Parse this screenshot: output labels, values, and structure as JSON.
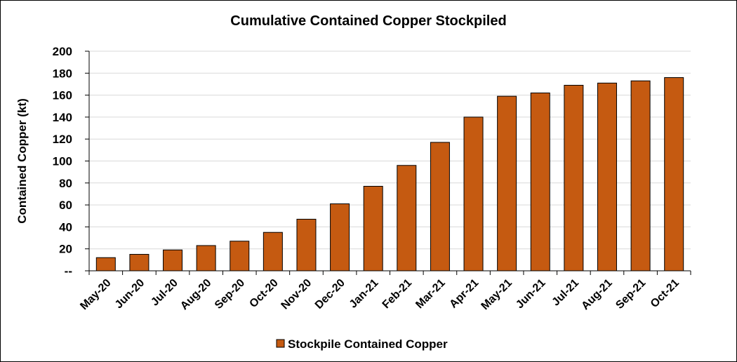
{
  "chart_data": {
    "type": "bar",
    "title": "Cumulative Contained Copper Stockpiled",
    "xlabel": "",
    "ylabel": "Contained Copper (kt)",
    "ylim": [
      0,
      200
    ],
    "yticks": [
      0,
      20,
      40,
      60,
      80,
      100,
      120,
      140,
      160,
      180,
      200
    ],
    "ytick_labels": [
      "--",
      "20",
      "40",
      "60",
      "80",
      "100",
      "120",
      "140",
      "160",
      "180",
      "200"
    ],
    "grid": true,
    "legend_position": "bottom",
    "categories": [
      "May-20",
      "Jun-20",
      "Jul-20",
      "Aug-20",
      "Sep-20",
      "Oct-20",
      "Nov-20",
      "Dec-20",
      "Jan-21",
      "Feb-21",
      "Mar-21",
      "Apr-21",
      "May-21",
      "Jun-21",
      "Jul-21",
      "Aug-21",
      "Sep-21",
      "Oct-21"
    ],
    "series": [
      {
        "name": "Stockpile Contained Copper",
        "color": "#C55A11",
        "values": [
          12,
          15,
          19,
          23,
          27,
          35,
          47,
          61,
          77,
          96,
          117,
          140,
          159,
          162,
          169,
          171,
          173,
          176
        ]
      }
    ]
  }
}
